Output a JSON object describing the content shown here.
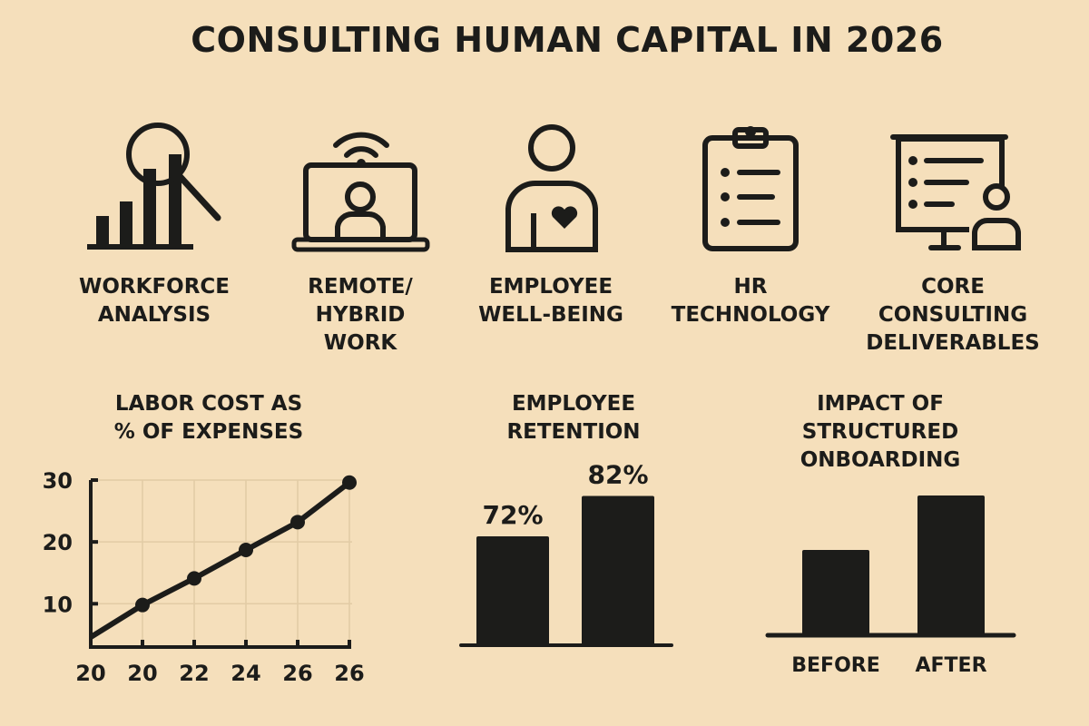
{
  "title": "CONSULTING HUMAN CAPITAL IN 2026",
  "colors": {
    "background": "#f5dfbb",
    "ink": "#1c1c1a",
    "grid": "#e2cba5"
  },
  "topics": [
    {
      "icon": "bar-chart-magnifier-icon",
      "label": "WORKFORCE\nANALYSIS"
    },
    {
      "icon": "laptop-video-call-icon",
      "label": "REMOTE/\nHYBRID\nWORK"
    },
    {
      "icon": "person-heart-icon",
      "label": "EMPLOYEE\nWELL-BEING"
    },
    {
      "icon": "clipboard-checklist-icon",
      "label": "HR\nTECHNOLOGY"
    },
    {
      "icon": "presentation-board-icon",
      "label": "CORE\nCONSULTING\nDELIVERABLES"
    }
  ],
  "chart_data": [
    {
      "type": "line",
      "title": "LABOR COST AS\n% OF EXPENSES",
      "x_tick_labels": [
        "20",
        "20",
        "22",
        "24",
        "26",
        "26"
      ],
      "y_ticks": [
        10,
        20,
        30
      ],
      "ylim": [
        3,
        30
      ],
      "grid": true,
      "values": [
        4.6,
        9.8,
        14.1,
        18.7,
        23.2,
        29.6
      ],
      "markers_on": [
        false,
        true,
        true,
        true,
        true,
        true
      ]
    },
    {
      "type": "bar",
      "title": "EMPLOYEE\nRETENTION",
      "categories": [
        "",
        ""
      ],
      "values": [
        72,
        82
      ],
      "data_labels": [
        "72%",
        "82%"
      ],
      "unit": "%"
    },
    {
      "type": "bar",
      "title": "IMPACT OF\nSTRUCTURED\nONBOARDING",
      "categories": [
        "BEFORE",
        "AFTER"
      ],
      "values_relative": [
        0.61,
        1.0
      ]
    }
  ]
}
